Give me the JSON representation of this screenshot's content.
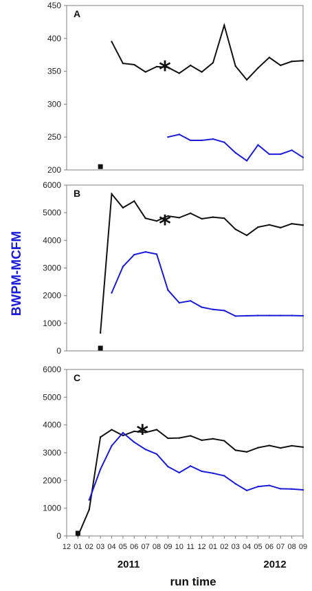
{
  "figure": {
    "ylabel": "BWPM-MCFM",
    "xlabel": "run time",
    "year_labels": [
      {
        "text": "2011",
        "month_index": 5.5
      },
      {
        "text": "2012",
        "month_index": 18.5
      }
    ],
    "xtick_labels": [
      "12",
      "01",
      "02",
      "03",
      "04",
      "05",
      "06",
      "07",
      "08",
      "09",
      "10",
      "11",
      "12",
      "01",
      "02",
      "03",
      "04",
      "05",
      "06",
      "07",
      "08",
      "09"
    ],
    "colors": {
      "black_series": "#111111",
      "blue_series": "#1a1adb",
      "ylabel": "#1a1adb",
      "axis": "#7f7f7f"
    }
  },
  "chart_data": [
    {
      "type": "line",
      "panel_label": "A",
      "ylim": [
        200,
        450
      ],
      "yticks": [
        "200",
        "250",
        "300",
        "350",
        "400",
        "450"
      ],
      "series": [
        {
          "color": "black",
          "x": [
            4,
            5,
            6,
            7,
            8,
            9,
            10,
            11,
            12,
            13,
            14,
            15,
            16,
            17,
            18,
            19,
            20,
            21
          ],
          "values": [
            395,
            362,
            360,
            349,
            357,
            356,
            347,
            359,
            349,
            363,
            420,
            358,
            337,
            355,
            371,
            359,
            365,
            366
          ]
        },
        {
          "color": "blue",
          "x": [
            9,
            10,
            11,
            12,
            13,
            14,
            15,
            16,
            17,
            18,
            19,
            20,
            21
          ],
          "values": [
            250,
            254,
            245,
            245,
            247,
            242,
            226,
            214,
            238,
            224,
            224,
            230,
            219
          ]
        }
      ],
      "markers": [
        {
          "symbol": "square",
          "x": 3,
          "y": 205
        }
      ],
      "annotations": [
        {
          "text": "*",
          "x": 8,
          "y": 363
        }
      ]
    },
    {
      "type": "line",
      "panel_label": "B",
      "ylim": [
        0,
        6000
      ],
      "yticks": [
        "0",
        "1000",
        "2000",
        "3000",
        "4000",
        "5000",
        "6000"
      ],
      "series": [
        {
          "color": "black",
          "x": [
            3,
            4,
            5,
            6,
            7,
            8,
            9,
            10,
            11,
            12,
            13,
            14,
            15,
            16,
            17,
            18,
            19,
            20,
            21
          ],
          "values": [
            650,
            5680,
            5180,
            5420,
            4800,
            4700,
            4880,
            4820,
            4980,
            4780,
            4840,
            4800,
            4400,
            4180,
            4480,
            4560,
            4460,
            4600,
            4550
          ]
        },
        {
          "color": "blue",
          "x": [
            4,
            5,
            6,
            7,
            8,
            9,
            10,
            11,
            12,
            13,
            14,
            15,
            16,
            17,
            18,
            19,
            20,
            21
          ],
          "values": [
            2100,
            3050,
            3480,
            3580,
            3500,
            2200,
            1740,
            1810,
            1580,
            1500,
            1460,
            1260,
            1270,
            1280,
            1280,
            1280,
            1280,
            1270
          ]
        }
      ],
      "markers": [
        {
          "symbol": "square",
          "x": 3,
          "y": 100
        }
      ],
      "annotations": [
        {
          "text": "*",
          "x": 8,
          "y": 4850
        }
      ]
    },
    {
      "type": "line",
      "panel_label": "C",
      "ylim": [
        0,
        6000
      ],
      "yticks": [
        "0",
        "1000",
        "2000",
        "3000",
        "4000",
        "5000",
        "6000"
      ],
      "series": [
        {
          "color": "black",
          "x": [
            1,
            2,
            3,
            4,
            5,
            6,
            7,
            8,
            9,
            10,
            11,
            12,
            13,
            14,
            15,
            16,
            17,
            18,
            19,
            20,
            21
          ],
          "values": [
            0,
            950,
            3560,
            3830,
            3620,
            3770,
            3730,
            3830,
            3520,
            3530,
            3610,
            3450,
            3500,
            3430,
            3090,
            3030,
            3180,
            3260,
            3170,
            3250,
            3200
          ]
        },
        {
          "color": "blue",
          "x": [
            2,
            3,
            4,
            5,
            6,
            7,
            8,
            9,
            10,
            11,
            12,
            13,
            14,
            15,
            16,
            17,
            18,
            19,
            20,
            21
          ],
          "values": [
            1300,
            2400,
            3250,
            3720,
            3380,
            3120,
            2950,
            2500,
            2280,
            2520,
            2330,
            2260,
            2170,
            1880,
            1640,
            1780,
            1820,
            1700,
            1690,
            1660
          ]
        }
      ],
      "markers": [
        {
          "symbol": "square",
          "x": 1,
          "y": 100
        }
      ],
      "annotations": [
        {
          "text": "*",
          "x": 6,
          "y": 3950
        }
      ]
    }
  ]
}
